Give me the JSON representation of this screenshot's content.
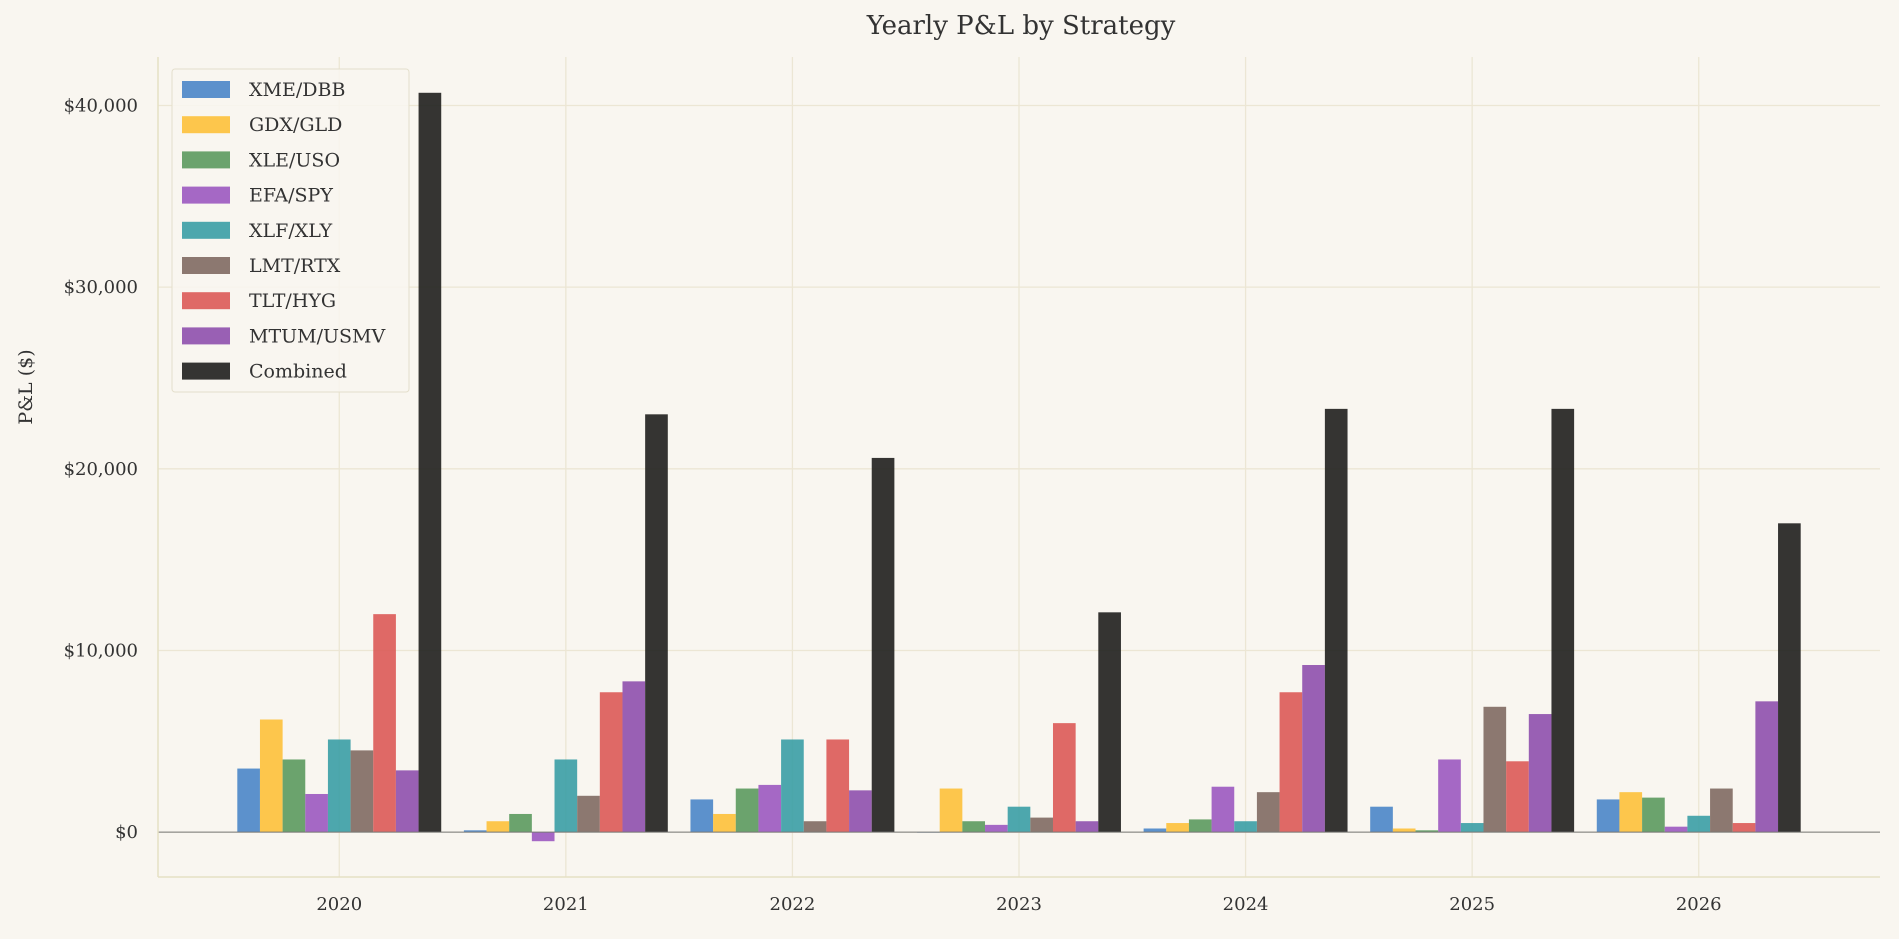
{
  "chart_data": {
    "type": "bar",
    "title": "Yearly P&L by Strategy",
    "xlabel": "",
    "ylabel": "P&L ($)",
    "categories": [
      "2020",
      "2021",
      "2022",
      "2023",
      "2024",
      "2025",
      "2026"
    ],
    "ylim": [
      -2470,
      42670
    ],
    "yticks": [
      0,
      10000,
      20000,
      30000,
      40000
    ],
    "ytick_labels": [
      "$0",
      "$10,000",
      "$20,000",
      "$30,000",
      "$40,000"
    ],
    "grid": true,
    "legend_position": "top-left",
    "series": [
      {
        "name": "XME/DBB",
        "color": "#4a86c8",
        "values": [
          3500,
          100,
          1800,
          0,
          200,
          1400,
          1800
        ]
      },
      {
        "name": "GDX/GLD",
        "color": "#fdc13a",
        "values": [
          6200,
          600,
          1000,
          2400,
          500,
          200,
          2200
        ]
      },
      {
        "name": "XLE/USO",
        "color": "#5b9a5e",
        "values": [
          4000,
          1000,
          2400,
          600,
          700,
          100,
          1900
        ]
      },
      {
        "name": "EFA/SPY",
        "color": "#9b59c0",
        "values": [
          2100,
          -500,
          2600,
          400,
          2500,
          4000,
          300
        ]
      },
      {
        "name": "XLF/XLY",
        "color": "#3a9ea5",
        "values": [
          5100,
          4000,
          5100,
          1400,
          600,
          500,
          900
        ]
      },
      {
        "name": "LMT/RTX",
        "color": "#7f6a62",
        "values": [
          4500,
          2000,
          600,
          800,
          2200,
          6900,
          2400
        ]
      },
      {
        "name": "TLT/HYG",
        "color": "#dc5a56",
        "values": [
          12000,
          7700,
          5100,
          6000,
          7700,
          3900,
          500
        ]
      },
      {
        "name": "MTUM/USMV",
        "color": "#8e50ad",
        "values": [
          3400,
          8300,
          2300,
          600,
          9200,
          6500,
          7200
        ]
      },
      {
        "name": "Combined",
        "color": "#1f1f1d",
        "values": [
          40700,
          23000,
          20600,
          12100,
          23300,
          23300,
          17000
        ]
      }
    ]
  }
}
